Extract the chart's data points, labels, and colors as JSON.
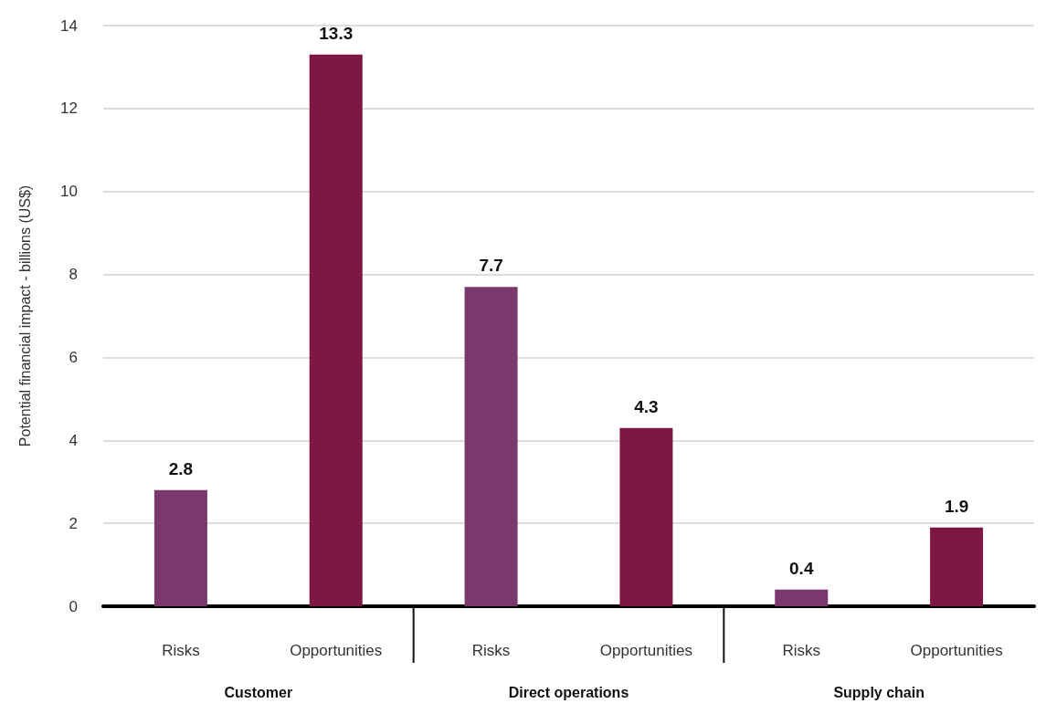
{
  "chart_data": {
    "type": "bar",
    "ylabel": "Potential financial impact - billions (US$)",
    "categories": [
      "Risks",
      "Opportunities",
      "Risks",
      "Opportunities",
      "Risks",
      "Opportunities"
    ],
    "values": [
      2.8,
      13.3,
      7.7,
      4.3,
      0.4,
      1.9
    ],
    "colors": [
      "#7b386d",
      "#7e1744",
      "#7b386d",
      "#7e1744",
      "#7b386d",
      "#7e1744"
    ],
    "ylim": [
      0,
      14
    ],
    "yticks": [
      0,
      2,
      4,
      6,
      8,
      10,
      12,
      14
    ],
    "grid": "y",
    "data_labels": true,
    "annotations": [
      "Customer",
      "Direct operations",
      "Supply chain"
    ]
  }
}
